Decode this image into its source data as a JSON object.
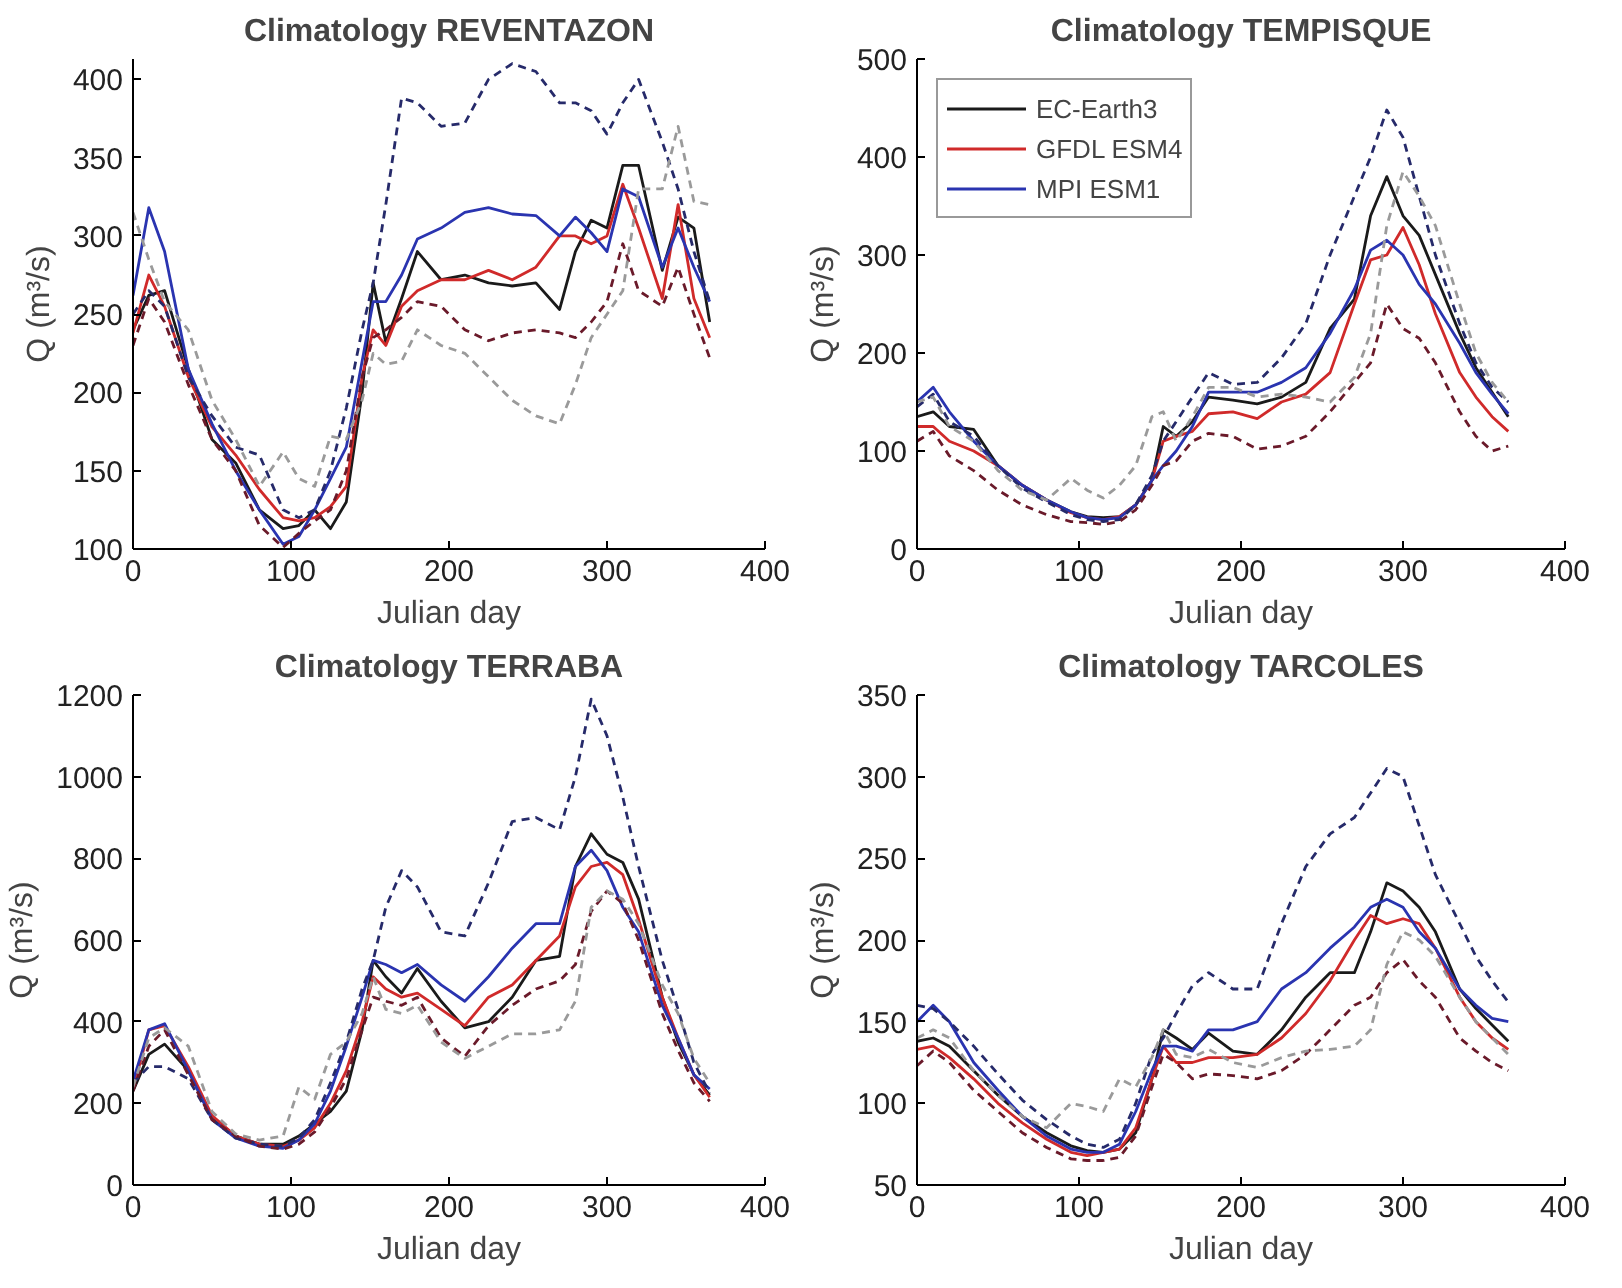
{
  "chart_data": [
    {
      "type": "line",
      "title": "Climatology REVENTAZON",
      "xlabel": "Julian day",
      "ylabel": "Q (m³/s)",
      "xlim": [
        0,
        400
      ],
      "xticks": [
        0,
        100,
        200,
        300,
        400
      ],
      "ylim": [
        100,
        413
      ],
      "yticks": [
        100,
        150,
        200,
        250,
        300,
        350,
        400
      ],
      "grid": false,
      "legend": false,
      "x": [
        0,
        10,
        20,
        35,
        50,
        65,
        80,
        95,
        105,
        115,
        125,
        135,
        145,
        152,
        160,
        170,
        180,
        195,
        210,
        225,
        240,
        255,
        270,
        280,
        290,
        300,
        310,
        320,
        335,
        345,
        355,
        365
      ],
      "series": [
        {
          "color": "#1a1a1a",
          "line_style": "solid",
          "values": [
            240,
            262,
            265,
            215,
            170,
            155,
            125,
            113,
            115,
            125,
            113,
            130,
            200,
            270,
            232,
            260,
            290,
            272,
            275,
            270,
            268,
            270,
            253,
            290,
            310,
            305,
            345,
            345,
            278,
            312,
            305,
            245
          ]
        },
        {
          "color": "#d02a2a",
          "line_style": "solid",
          "values": [
            238,
            275,
            255,
            210,
            178,
            160,
            138,
            120,
            118,
            120,
            127,
            140,
            210,
            240,
            230,
            255,
            265,
            272,
            272,
            278,
            272,
            280,
            300,
            300,
            295,
            300,
            333,
            305,
            260,
            320,
            260,
            235
          ]
        },
        {
          "color": "#2a34b0",
          "line_style": "solid",
          "values": [
            262,
            318,
            290,
            215,
            180,
            150,
            125,
            103,
            108,
            125,
            145,
            165,
            220,
            258,
            258,
            275,
            298,
            305,
            315,
            318,
            314,
            313,
            300,
            312,
            302,
            290,
            330,
            325,
            280,
            305,
            280,
            258
          ]
        },
        {
          "color": "#262a6a",
          "line_style": "dashed",
          "values": [
            250,
            265,
            255,
            210,
            185,
            165,
            160,
            125,
            120,
            125,
            150,
            190,
            240,
            270,
            320,
            388,
            385,
            370,
            372,
            400,
            410,
            405,
            385,
            385,
            380,
            365,
            385,
            400,
            360,
            330,
            290,
            258
          ]
        },
        {
          "color": "#6a1a2a",
          "line_style": "dashed",
          "values": [
            230,
            260,
            245,
            205,
            170,
            150,
            115,
            101,
            110,
            118,
            125,
            150,
            210,
            235,
            240,
            248,
            258,
            255,
            240,
            233,
            238,
            240,
            238,
            235,
            245,
            258,
            295,
            265,
            255,
            280,
            250,
            222
          ]
        },
        {
          "color": "#9a9a9a",
          "line_style": "dashed",
          "values": [
            315,
            285,
            258,
            240,
            195,
            170,
            140,
            162,
            145,
            140,
            172,
            170,
            195,
            225,
            218,
            220,
            240,
            230,
            225,
            210,
            195,
            185,
            180,
            205,
            235,
            250,
            265,
            330,
            330,
            370,
            322,
            320
          ]
        }
      ]
    },
    {
      "type": "line",
      "title": "Climatology TEMPISQUE",
      "xlabel": "Julian day",
      "ylabel": "Q (m³/s)",
      "xlim": [
        0,
        400
      ],
      "xticks": [
        0,
        100,
        200,
        300,
        400
      ],
      "ylim": [
        0,
        500
      ],
      "yticks": [
        0,
        100,
        200,
        300,
        400,
        500
      ],
      "grid": false,
      "legend": "top left",
      "x": [
        0,
        10,
        20,
        35,
        50,
        65,
        80,
        95,
        105,
        115,
        125,
        135,
        145,
        152,
        160,
        170,
        180,
        195,
        210,
        225,
        240,
        255,
        270,
        280,
        290,
        300,
        310,
        320,
        335,
        345,
        355,
        365
      ],
      "series": [
        {
          "name": "EC-Earth3",
          "color": "#1a1a1a",
          "line_style": "solid",
          "values": [
            135,
            140,
            125,
            122,
            85,
            65,
            50,
            38,
            33,
            32,
            33,
            45,
            70,
            125,
            115,
            130,
            155,
            152,
            148,
            155,
            170,
            225,
            255,
            340,
            380,
            340,
            320,
            280,
            220,
            185,
            160,
            135
          ]
        },
        {
          "name": "GFDL ESM4",
          "color": "#d02a2a",
          "line_style": "solid",
          "values": [
            125,
            125,
            110,
            100,
            85,
            65,
            50,
            37,
            32,
            30,
            33,
            45,
            70,
            110,
            115,
            120,
            138,
            140,
            133,
            150,
            158,
            180,
            250,
            295,
            300,
            328,
            290,
            240,
            180,
            155,
            135,
            120
          ]
        },
        {
          "name": "MPI ESM1",
          "color": "#2a34b0",
          "line_style": "solid",
          "values": [
            150,
            165,
            140,
            110,
            85,
            65,
            50,
            38,
            32,
            30,
            32,
            45,
            70,
            85,
            100,
            125,
            160,
            160,
            160,
            170,
            185,
            220,
            265,
            305,
            315,
            300,
            270,
            250,
            210,
            180,
            158,
            138
          ]
        },
        {
          "color": "#262a6a",
          "line_style": "dashed",
          "values": [
            145,
            158,
            130,
            115,
            85,
            62,
            48,
            35,
            30,
            28,
            30,
            45,
            75,
            110,
            130,
            155,
            180,
            168,
            170,
            195,
            230,
            300,
            360,
            400,
            448,
            420,
            360,
            300,
            230,
            190,
            165,
            150
          ]
        },
        {
          "color": "#6a1a2a",
          "line_style": "dashed",
          "values": [
            110,
            120,
            95,
            80,
            60,
            45,
            35,
            28,
            27,
            25,
            28,
            40,
            65,
            85,
            90,
            110,
            118,
            115,
            102,
            105,
            115,
            140,
            170,
            190,
            250,
            225,
            215,
            190,
            140,
            115,
            100,
            105
          ]
        },
        {
          "color": "#9a9a9a",
          "line_style": "dashed",
          "values": [
            150,
            155,
            125,
            110,
            80,
            60,
            50,
            72,
            60,
            52,
            65,
            85,
            135,
            140,
            110,
            135,
            165,
            165,
            155,
            158,
            155,
            150,
            175,
            220,
            330,
            385,
            360,
            330,
            250,
            200,
            170,
            150
          ]
        }
      ]
    },
    {
      "type": "line",
      "title": "Climatology TERRABA",
      "xlabel": "Julian day",
      "ylabel": "Q (m³/s)",
      "xlim": [
        0,
        400
      ],
      "xticks": [
        0,
        100,
        200,
        300,
        400
      ],
      "ylim": [
        0,
        1200
      ],
      "yticks": [
        0,
        200,
        400,
        600,
        800,
        1000,
        1200
      ],
      "grid": false,
      "legend": false,
      "x": [
        0,
        10,
        20,
        35,
        50,
        65,
        80,
        95,
        105,
        115,
        125,
        135,
        145,
        152,
        160,
        170,
        180,
        195,
        210,
        225,
        240,
        255,
        270,
        280,
        290,
        300,
        310,
        320,
        335,
        345,
        355,
        365
      ],
      "series": [
        {
          "color": "#1a1a1a",
          "line_style": "solid",
          "values": [
            230,
            320,
            345,
            280,
            165,
            120,
            100,
            100,
            120,
            150,
            180,
            230,
            380,
            550,
            510,
            470,
            530,
            450,
            385,
            400,
            460,
            550,
            560,
            780,
            860,
            810,
            790,
            700,
            460,
            350,
            270,
            220
          ]
        },
        {
          "color": "#d02a2a",
          "line_style": "solid",
          "values": [
            235,
            380,
            390,
            290,
            170,
            120,
            100,
            95,
            110,
            140,
            200,
            280,
            400,
            510,
            480,
            460,
            470,
            430,
            390,
            460,
            490,
            550,
            610,
            730,
            780,
            790,
            760,
            650,
            460,
            360,
            270,
            215
          ]
        },
        {
          "color": "#2a34b0",
          "line_style": "solid",
          "values": [
            255,
            380,
            395,
            280,
            160,
            115,
            95,
            90,
            110,
            150,
            230,
            340,
            460,
            550,
            540,
            520,
            540,
            490,
            450,
            510,
            580,
            640,
            640,
            780,
            820,
            770,
            680,
            620,
            440,
            360,
            270,
            235
          ]
        },
        {
          "color": "#262a6a",
          "line_style": "dashed",
          "values": [
            250,
            290,
            290,
            260,
            160,
            115,
            100,
            95,
            115,
            160,
            250,
            350,
            480,
            550,
            680,
            770,
            730,
            620,
            610,
            740,
            890,
            900,
            870,
            1000,
            1190,
            1100,
            950,
            780,
            550,
            430,
            300,
            225
          ]
        },
        {
          "color": "#6a1a2a",
          "line_style": "dashed",
          "values": [
            230,
            340,
            380,
            270,
            160,
            120,
            95,
            88,
            100,
            130,
            190,
            260,
            380,
            460,
            450,
            440,
            460,
            360,
            315,
            390,
            440,
            480,
            500,
            540,
            670,
            720,
            690,
            600,
            420,
            330,
            250,
            205
          ]
        },
        {
          "color": "#9a9a9a",
          "line_style": "dashed",
          "values": [
            240,
            360,
            385,
            340,
            180,
            125,
            110,
            120,
            240,
            210,
            320,
            350,
            420,
            510,
            430,
            420,
            440,
            350,
            310,
            340,
            370,
            370,
            380,
            450,
            680,
            720,
            700,
            640,
            490,
            420,
            310,
            250
          ]
        }
      ]
    },
    {
      "type": "line",
      "title": "Climatology TARCOLES",
      "xlabel": "Julian day",
      "ylabel": "Q (m³/s)",
      "xlim": [
        0,
        400
      ],
      "xticks": [
        0,
        100,
        200,
        300,
        400
      ],
      "ylim": [
        50,
        350
      ],
      "yticks": [
        50,
        100,
        150,
        200,
        250,
        300,
        350
      ],
      "grid": false,
      "legend": false,
      "x": [
        0,
        10,
        20,
        35,
        50,
        65,
        80,
        95,
        105,
        115,
        125,
        135,
        145,
        152,
        160,
        170,
        180,
        195,
        210,
        225,
        240,
        255,
        270,
        280,
        290,
        300,
        310,
        320,
        335,
        345,
        355,
        365
      ],
      "series": [
        {
          "color": "#1a1a1a",
          "line_style": "solid",
          "values": [
            138,
            140,
            135,
            120,
            105,
            92,
            82,
            74,
            71,
            70,
            72,
            82,
            115,
            145,
            140,
            133,
            143,
            132,
            130,
            145,
            165,
            180,
            180,
            205,
            235,
            230,
            220,
            205,
            170,
            158,
            148,
            138
          ]
        },
        {
          "color": "#d02a2a",
          "line_style": "solid",
          "values": [
            133,
            135,
            128,
            115,
            100,
            88,
            78,
            70,
            68,
            70,
            72,
            85,
            115,
            135,
            125,
            125,
            128,
            128,
            130,
            140,
            155,
            175,
            200,
            215,
            210,
            213,
            210,
            195,
            165,
            150,
            140,
            133
          ]
        },
        {
          "color": "#2a34b0",
          "line_style": "solid",
          "values": [
            150,
            160,
            150,
            125,
            108,
            92,
            80,
            72,
            70,
            70,
            75,
            95,
            120,
            135,
            135,
            132,
            145,
            145,
            150,
            170,
            180,
            195,
            208,
            220,
            225,
            220,
            205,
            195,
            170,
            160,
            152,
            150
          ]
        },
        {
          "color": "#262a6a",
          "line_style": "dashed",
          "values": [
            160,
            158,
            150,
            135,
            118,
            102,
            90,
            80,
            75,
            73,
            78,
            100,
            130,
            140,
            155,
            172,
            180,
            170,
            170,
            210,
            245,
            265,
            275,
            290,
            305,
            300,
            270,
            240,
            210,
            190,
            175,
            162
          ]
        },
        {
          "color": "#6a1a2a",
          "line_style": "dashed",
          "values": [
            123,
            132,
            125,
            108,
            95,
            82,
            73,
            66,
            65,
            65,
            67,
            80,
            110,
            130,
            125,
            115,
            118,
            117,
            115,
            120,
            130,
            145,
            160,
            165,
            180,
            188,
            175,
            165,
            140,
            132,
            125,
            120
          ]
        },
        {
          "color": "#9a9a9a",
          "line_style": "dashed",
          "values": [
            140,
            145,
            140,
            120,
            105,
            92,
            85,
            100,
            98,
            95,
            115,
            110,
            128,
            145,
            130,
            128,
            133,
            125,
            122,
            128,
            132,
            133,
            135,
            145,
            185,
            205,
            200,
            190,
            165,
            150,
            140,
            130
          ]
        }
      ]
    }
  ]
}
